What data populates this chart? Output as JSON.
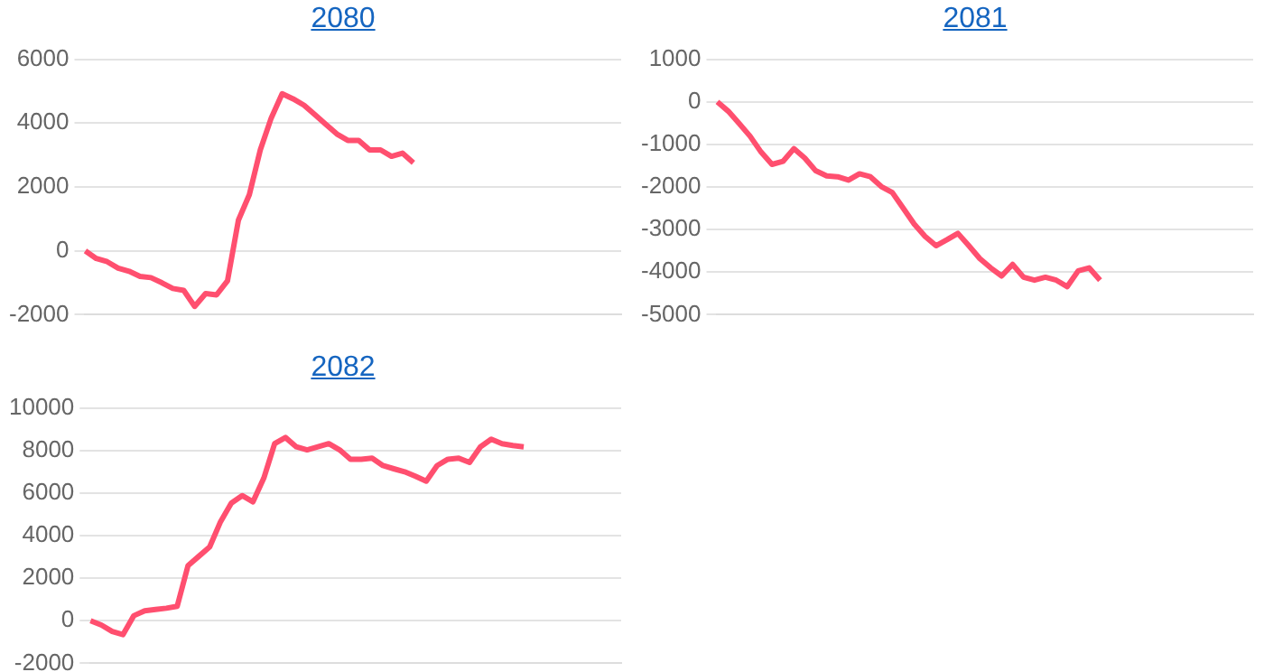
{
  "chart_data": [
    {
      "type": "line",
      "title": "2080",
      "categories": [
        null,
        null,
        null,
        null,
        null,
        null,
        null,
        null,
        null,
        null,
        null,
        null,
        null,
        null,
        null,
        null,
        null,
        null,
        null,
        null,
        null,
        null,
        null,
        null,
        null,
        null,
        null,
        null,
        null,
        null,
        null,
        null,
        null,
        null,
        null,
        null,
        null,
        null,
        null,
        null,
        null,
        null,
        null,
        null,
        null,
        null,
        null,
        null,
        null,
        null
      ],
      "series": [
        {
          "color": "#ff4f6f",
          "values": [
            0,
            -240,
            -340,
            -540,
            -640,
            -800,
            -840,
            -1000,
            -1180,
            -1240,
            -1740,
            -1340,
            -1380,
            -940,
            960,
            1760,
            3160,
            4160,
            4920,
            4760,
            4560,
            4260,
            3960,
            3660,
            3460,
            3460,
            3160,
            3160,
            2960,
            3060,
            2760,
            null,
            null,
            null,
            null,
            null,
            null,
            null,
            null,
            null,
            null,
            null,
            null,
            null,
            null,
            null,
            null,
            null,
            null,
            null
          ]
        }
      ],
      "ylim": [
        -2000,
        6000
      ],
      "yticks": [
        -2000,
        0,
        2000,
        4000,
        6000
      ],
      "grid": "y",
      "tick_labels": "y"
    },
    {
      "type": "line",
      "title": "2081",
      "categories": [
        null,
        null,
        null,
        null,
        null,
        null,
        null,
        null,
        null,
        null,
        null,
        null,
        null,
        null,
        null,
        null,
        null,
        null,
        null,
        null,
        null,
        null,
        null,
        null,
        null,
        null,
        null,
        null,
        null,
        null,
        null,
        null,
        null,
        null,
        null,
        null,
        null,
        null,
        null,
        null,
        null,
        null,
        null,
        null,
        null,
        null,
        null,
        null,
        null,
        null
      ],
      "series": [
        {
          "color": "#ff4f6f",
          "values": [
            0,
            -220,
            -510,
            -810,
            -1180,
            -1470,
            -1400,
            -1100,
            -1320,
            -1620,
            -1740,
            -1760,
            -1840,
            -1690,
            -1760,
            -1990,
            -2130,
            -2500,
            -2870,
            -3160,
            -3380,
            -3240,
            -3090,
            -3380,
            -3680,
            -3900,
            -4090,
            -3820,
            -4120,
            -4190,
            -4120,
            -4190,
            -4340,
            -3970,
            -3900,
            -4190,
            null,
            null,
            null,
            null,
            null,
            null,
            null,
            null,
            null,
            null,
            null,
            null,
            null,
            null
          ]
        }
      ],
      "ylim": [
        -5000,
        1000
      ],
      "yticks": [
        -5000,
        -4000,
        -3000,
        -2000,
        -1000,
        0,
        1000
      ],
      "grid": "y",
      "tick_labels": "y"
    },
    {
      "type": "line",
      "title": "2082",
      "categories": [
        null,
        null,
        null,
        null,
        null,
        null,
        null,
        null,
        null,
        null,
        null,
        null,
        null,
        null,
        null,
        null,
        null,
        null,
        null,
        null,
        null,
        null,
        null,
        null,
        null,
        null,
        null,
        null,
        null,
        null,
        null,
        null,
        null,
        null,
        null,
        null,
        null,
        null,
        null,
        null,
        null,
        null,
        null,
        null,
        null,
        null,
        null,
        null,
        null,
        null
      ],
      "series": [
        {
          "color": "#ff4f6f",
          "values": [
            0,
            -200,
            -500,
            -650,
            240,
            470,
            530,
            590,
            680,
            2590,
            3030,
            3470,
            4650,
            5530,
            5880,
            5590,
            6700,
            8320,
            8610,
            8170,
            8030,
            8170,
            8320,
            8030,
            7590,
            7590,
            7640,
            7290,
            7140,
            7000,
            6790,
            6560,
            7290,
            7590,
            7640,
            7440,
            8170,
            8530,
            8320,
            8230,
            8170,
            null,
            null,
            null,
            null,
            null,
            null,
            null,
            null,
            null
          ]
        }
      ],
      "ylim": [
        -2000,
        10000
      ],
      "yticks": [
        -2000,
        0,
        2000,
        4000,
        6000,
        8000,
        10000
      ],
      "grid": "y",
      "tick_labels": "y"
    }
  ]
}
